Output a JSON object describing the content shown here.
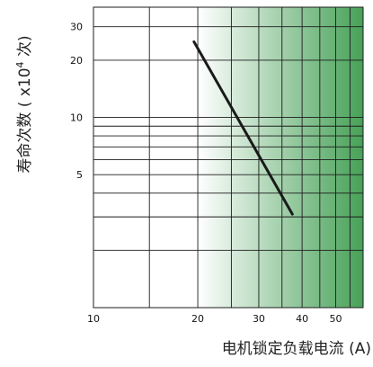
{
  "chart_data": {
    "type": "line",
    "title": "",
    "xlabel": "电机锁定负载电流 (A)",
    "ylabel_main": "寿命次数 ( x10",
    "ylabel_exp": "4",
    "ylabel_tail": " 次)",
    "x_scale": "log",
    "y_scale": "log",
    "xlim": [
      10,
      60
    ],
    "ylim": [
      1,
      38
    ],
    "x_ticks": [
      {
        "value": 10,
        "label": "10"
      },
      {
        "value": 20,
        "label": "20"
      },
      {
        "value": 30,
        "label": "30"
      },
      {
        "value": 40,
        "label": "40"
      },
      {
        "value": 50,
        "label": "50"
      }
    ],
    "x_gridlines": [
      10,
      14.5,
      20,
      25,
      30,
      35,
      40,
      45,
      50,
      55,
      60
    ],
    "y_ticks": [
      {
        "value": 5,
        "label": "5"
      },
      {
        "value": 10,
        "label": "10"
      },
      {
        "value": 20,
        "label": "20"
      },
      {
        "value": 30,
        "label": "30"
      }
    ],
    "y_gridlines": [
      2,
      3,
      4,
      5,
      6,
      7,
      8,
      9,
      10,
      20,
      30
    ],
    "grid": true,
    "background": {
      "shaded_from_x": 20,
      "shade_start_color": "#ffffff",
      "shade_end_color": "#3e9c4f"
    },
    "line_color": "#1a1a1a",
    "series": [
      {
        "x": [
          19.5,
          37.5
        ],
        "y": [
          25,
          3.1
        ]
      }
    ]
  }
}
